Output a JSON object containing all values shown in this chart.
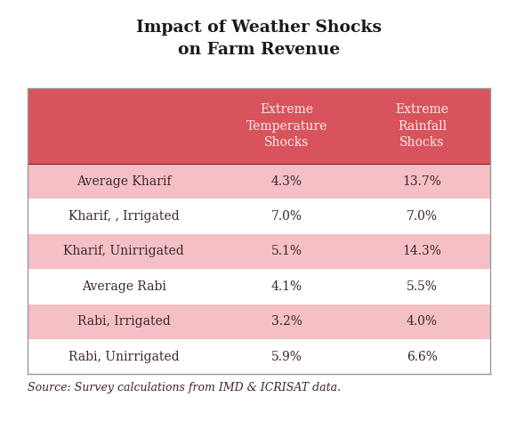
{
  "title": "Impact of Weather Shocks\non Farm Revenue",
  "col_headers": [
    "",
    "Extreme\nTemperature\nShocks",
    "Extreme\nRainfall\nShocks"
  ],
  "rows": [
    [
      "Average Kharif",
      "4.3%",
      "13.7%"
    ],
    [
      "Kharif, , Irrigated",
      "7.0%",
      "7.0%"
    ],
    [
      "Kharif, Unirrigated",
      "5.1%",
      "14.3%"
    ],
    [
      "Average Rabi",
      "4.1%",
      "5.5%"
    ],
    [
      "Rabi, Irrigated",
      "3.2%",
      "4.0%"
    ],
    [
      "Rabi, Unirrigated",
      "5.9%",
      "6.6%"
    ]
  ],
  "row_colors": [
    "#f5c0c5",
    "#ffffff",
    "#f5c0c5",
    "#ffffff",
    "#f5c0c5",
    "#ffffff"
  ],
  "header_bg": "#d9535c",
  "header_text_color": "#f7eeee",
  "body_text_color": "#3a2828",
  "source_text": "Source: Survey calculations from IMD & ICRISAT data.",
  "title_color": "#1a1a1a",
  "background_color": "#ffffff",
  "border_color": "#999999",
  "title_fontsize": 13.5,
  "header_fontsize": 10,
  "cell_fontsize": 10,
  "source_fontsize": 9
}
